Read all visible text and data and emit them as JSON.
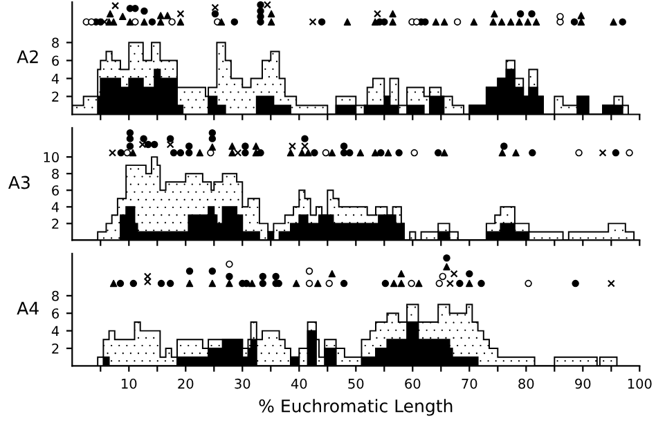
{
  "chart_data": [
    {
      "type": "histogram",
      "ylabel": "A2",
      "xlim": [
        0,
        100
      ],
      "ylim": [
        0,
        12.5
      ],
      "yticks": [
        2,
        4,
        6,
        8
      ],
      "tick_labels": "y",
      "grid": false,
      "xticks": [
        {
          "value": 5,
          "label": null
        },
        {
          "value": 10,
          "label": null
        },
        {
          "value": 15,
          "label": null
        },
        {
          "value": 20,
          "label": null
        },
        {
          "value": 25,
          "label": null
        },
        {
          "value": 30,
          "label": null
        },
        {
          "value": 35,
          "label": null
        },
        {
          "value": 40,
          "label": null
        },
        {
          "value": 45,
          "label": null
        },
        {
          "value": 50,
          "label": null
        },
        {
          "value": 55,
          "label": null
        },
        {
          "value": 60,
          "label": null
        },
        {
          "value": 65,
          "label": null
        },
        {
          "value": 70,
          "label": null
        },
        {
          "value": 75,
          "label": null
        },
        {
          "value": 80,
          "label": null
        },
        {
          "value": 85,
          "label": null
        },
        {
          "value": 90,
          "label": null
        },
        {
          "value": 95,
          "label": null
        },
        {
          "value": 100,
          "label": null
        }
      ],
      "series": [
        {
          "color": "#ffffff",
          "bins": [
            0,
            2,
            4.5,
            5,
            6,
            7,
            8.5,
            10,
            12.5,
            14,
            15.5,
            18.5,
            23.5,
            24,
            25.5,
            27,
            28,
            30,
            31.5,
            33.5,
            35,
            36.5,
            37.5,
            39.5,
            45,
            46.5,
            50,
            52,
            53,
            55,
            56,
            57.5,
            59,
            62,
            63,
            65,
            67,
            69,
            70,
            73,
            75,
            76.5,
            78,
            79.5,
            80.5,
            82,
            83,
            85,
            86.5,
            89,
            91,
            93.5,
            95.5,
            97,
            98
          ],
          "values": [
            1,
            2,
            5,
            6,
            7,
            6,
            5,
            8,
            6,
            8,
            6,
            3,
            2,
            3,
            8,
            6,
            4,
            3,
            4,
            6,
            7,
            4,
            2,
            1,
            0,
            2,
            1,
            3,
            4,
            2,
            4,
            1,
            3,
            2,
            3,
            2,
            1,
            0,
            1,
            3,
            4,
            6,
            4,
            2,
            5,
            2,
            0,
            2,
            1,
            2,
            0,
            1,
            2,
            1
          ]
        },
        {
          "color": "#000000",
          "bins": [
            4.5,
            5,
            8.5,
            10,
            12.5,
            14.5,
            15.5,
            18.5,
            19.5,
            24,
            25.5,
            27,
            32.5,
            35.5,
            38.5,
            46.5,
            50,
            51.5,
            55,
            56,
            57.5,
            59,
            62,
            63,
            65.5,
            70,
            73,
            75,
            76.5,
            78,
            79.5,
            80.5,
            82,
            83,
            89,
            91,
            93.5,
            97
          ],
          "values": [
            2,
            4,
            3,
            4,
            3,
            5,
            4,
            1,
            0,
            2,
            1,
            0,
            2,
            1,
            0,
            1,
            0,
            1,
            2,
            1,
            0,
            1,
            0,
            2,
            0,
            1,
            3,
            4,
            5,
            3,
            2,
            3,
            2,
            0,
            2,
            0,
            1
          ]
        },
        {
          "type": "scatter",
          "marker": "circle",
          "color": "#000000",
          "x": [
            4.2,
            5.0,
            10.2,
            11.1,
            12.7,
            14.1,
            25.2,
            28.6,
            33.2,
            33.2,
            33.2,
            33.2,
            44,
            54.2,
            55,
            61.5,
            62.2,
            79,
            81,
            88.5,
            97
          ],
          "values": [
            10.3,
            10.3,
            11.8,
            11.8,
            11.5,
            10.3,
            11.2,
            10.3,
            10.3,
            10.9,
            11.5,
            12.2,
            10.3,
            10.3,
            10.3,
            10.3,
            10.3,
            11.2,
            11.2,
            10.3,
            10.3
          ]
        },
        {
          "type": "scatter",
          "marker": "circle",
          "color": "#ffffff",
          "x": [
            2.5,
            3.4,
            11.1,
            17.6,
            25.6,
            59.9,
            60.7,
            67.9,
            86,
            86
          ],
          "values": [
            10.3,
            10.3,
            10.3,
            10.3,
            10.3,
            10.3,
            10.3,
            10.3,
            10.3,
            10.9
          ]
        },
        {
          "type": "scatter",
          "marker": "triangle",
          "color": "#000000",
          "x": [
            6.5,
            7.3,
            6.7,
            8.9,
            10.2,
            12.7,
            15.6,
            16.8,
            15.6,
            19.1,
            26.3,
            35.1,
            35.1,
            48.5,
            53.4,
            56.5,
            56.5,
            64.1,
            65.6,
            70.8,
            74.2,
            75.7,
            77.3,
            78.8,
            80.3,
            81.8,
            74.4,
            89.7,
            89.7,
            95.4
          ],
          "values": [
            10.3,
            10.3,
            11.2,
            10.9,
            10.3,
            10.3,
            11.0,
            11.0,
            10.3,
            10.3,
            10.3,
            10.3,
            11.2,
            10.3,
            10.3,
            10.3,
            11.2,
            10.3,
            10.3,
            10.3,
            10.3,
            10.3,
            10.3,
            10.3,
            10.3,
            10.3,
            11.2,
            10.3,
            11.0,
            10.3
          ]
        },
        {
          "type": "scatter",
          "marker": "cross",
          "color": "#000000",
          "x": [
            5.7,
            7.6,
            19.1,
            25.2,
            34.4,
            42.4,
            53.8
          ],
          "values": [
            10.3,
            12.1,
            11.2,
            11.9,
            12.2,
            10.3,
            11.2
          ]
        }
      ]
    },
    {
      "type": "histogram",
      "ylabel": "A3",
      "xlim": [
        0,
        100
      ],
      "ylim": [
        0,
        13.5
      ],
      "yticks": [
        2,
        4,
        6,
        8,
        10
      ],
      "tick_labels": "y",
      "grid": false,
      "xticks": [
        {
          "value": 5,
          "label": null
        },
        {
          "value": 10,
          "label": null
        },
        {
          "value": 15,
          "label": null
        },
        {
          "value": 20,
          "label": null
        },
        {
          "value": 25,
          "label": null
        },
        {
          "value": 30,
          "label": null
        },
        {
          "value": 35,
          "label": null
        },
        {
          "value": 40,
          "label": null
        },
        {
          "value": 45,
          "label": null
        },
        {
          "value": 50,
          "label": null
        },
        {
          "value": 55,
          "label": null
        },
        {
          "value": 60,
          "label": null
        },
        {
          "value": 65,
          "label": null
        },
        {
          "value": 70,
          "label": null
        },
        {
          "value": 75,
          "label": null
        },
        {
          "value": 80,
          "label": null
        },
        {
          "value": 85,
          "label": null
        },
        {
          "value": 90,
          "label": null
        },
        {
          "value": 95,
          "label": null
        },
        {
          "value": 100,
          "label": null
        }
      ],
      "series": [
        {
          "color": "#ffffff",
          "bins": [
            0,
            4.5,
            6,
            7,
            8,
            9.5,
            13,
            14,
            15,
            15.5,
            16.5,
            20,
            23,
            24.5,
            25,
            26.5,
            29,
            30,
            31,
            33,
            34.5,
            35.5,
            37.5,
            39,
            40,
            41,
            42,
            43,
            44,
            45,
            46,
            47,
            52,
            53.5,
            55.5,
            56.5,
            58,
            58.5,
            59.5,
            60.5,
            61.5,
            64.5,
            66.5,
            68,
            73,
            74.5,
            75.5,
            78,
            80.5,
            86.5,
            87.5,
            94.5,
            97.5,
            99
          ],
          "values": [
            0,
            1,
            2,
            3,
            5,
            9,
            8,
            10,
            9,
            6,
            7,
            8,
            7,
            6,
            7,
            8,
            7,
            4,
            5,
            2,
            1,
            2,
            3,
            4,
            6,
            5,
            3,
            4,
            3,
            6,
            5,
            4,
            3,
            4,
            3,
            4,
            2,
            0,
            1,
            0,
            1,
            2,
            1,
            0,
            2,
            3,
            4,
            2,
            1,
            0,
            1,
            2,
            1
          ]
        },
        {
          "color": "#000000",
          "bins": [
            8.5,
            9.5,
            11,
            11.5,
            20.5,
            24,
            25,
            25.5,
            26.5,
            29,
            30,
            33,
            34.5,
            35.5,
            36.5,
            38.5,
            40,
            41.5,
            43.5,
            46,
            54,
            57,
            58.5,
            64.5,
            66.5,
            73,
            75.5,
            78,
            80.5
          ],
          "values": [
            3,
            4,
            2,
            1,
            3,
            4,
            3,
            2,
            4,
            3,
            1,
            0,
            1,
            0,
            1,
            2,
            3,
            2,
            3,
            2,
            3,
            2,
            0,
            1,
            0,
            1,
            2,
            1
          ]
        },
        {
          "type": "scatter",
          "marker": "circle",
          "color": "#000000",
          "x": [
            8.6,
            10.2,
            10.2,
            10.2,
            13.4,
            14.5,
            12.6,
            17.3,
            17.9,
            19.1,
            20.6,
            20.6,
            24.7,
            24.7,
            30.5,
            30.5,
            33.2,
            41,
            42.7,
            47.9,
            47.9,
            48.9,
            54.4,
            57.6,
            64.5,
            76.1,
            81.1,
            95.8
          ],
          "values": [
            10.5,
            11.3,
            12.2,
            12.9,
            11.5,
            11.5,
            12.2,
            12.2,
            10.5,
            10.5,
            10.5,
            11.3,
            12.2,
            12.9,
            10.5,
            11.3,
            10.5,
            12.2,
            10.5,
            10.5,
            11.3,
            10.5,
            10.5,
            10.5,
            10.5,
            11.3,
            10.5,
            10.5
          ]
        },
        {
          "type": "scatter",
          "marker": "circle",
          "color": "#ffffff",
          "x": [
            9.7,
            24.4,
            44.7,
            60.3,
            89.3,
            98.2
          ],
          "values": [
            10.5,
            10.5,
            10.5,
            10.5,
            10.5,
            10.5
          ]
        },
        {
          "type": "scatter",
          "marker": "triangle",
          "color": "#000000",
          "x": [
            10.7,
            22.5,
            24.7,
            28.2,
            28.2,
            32.4,
            32.4,
            38.5,
            40.5,
            41.6,
            45.8,
            50.8,
            53.4,
            55.7,
            65.6,
            75.8,
            78.2
          ],
          "values": [
            10.5,
            10.5,
            11.2,
            10.5,
            11.3,
            10.5,
            11.3,
            10.5,
            10.5,
            10.5,
            10.5,
            10.5,
            10.5,
            10.5,
            10.5,
            10.5,
            10.5
          ]
        },
        {
          "type": "scatter",
          "marker": "cross",
          "color": "#000000",
          "x": [
            7.1,
            12.4,
            17.3,
            29.2,
            38.8,
            41,
            93.5
          ],
          "values": [
            10.5,
            11.5,
            11.5,
            10.5,
            11.3,
            11.3,
            10.5
          ]
        }
      ]
    },
    {
      "type": "histogram",
      "ylabel": "A4",
      "xlabel": "% Euchromatic Length",
      "xlim": [
        0,
        100
      ],
      "ylim": [
        0,
        12.8
      ],
      "yticks": [
        2,
        4,
        6,
        8
      ],
      "grid": false,
      "xticks": [
        {
          "value": 5,
          "label": null
        },
        10,
        {
          "value": 15,
          "label": null
        },
        20,
        {
          "value": 25,
          "label": null
        },
        30,
        {
          "value": 35,
          "label": null
        },
        40,
        {
          "value": 45,
          "label": null
        },
        50,
        {
          "value": 55,
          "label": null
        },
        60,
        {
          "value": 65,
          "label": null
        },
        70,
        {
          "value": 75,
          "label": null
        },
        80,
        {
          "value": 85,
          "label": null
        },
        90,
        {
          "value": 95,
          "label": null
        },
        100
      ],
      "series": [
        {
          "color": "#ffffff",
          "bins": [
            4.5,
            5.5,
            6.5,
            7.5,
            11,
            12,
            15.5,
            16.5,
            17.5,
            18.5,
            23,
            24,
            30,
            31,
            31.5,
            32.5,
            33.5,
            36.5,
            37.5,
            38.5,
            40,
            41.5,
            43,
            43.5,
            44.5,
            46.5,
            48,
            51,
            52.5,
            53.5,
            55.5,
            57.5,
            59,
            61,
            64.5,
            66.5,
            69.5,
            70.5,
            71.5,
            72.5,
            73.5,
            75,
            81.5,
            85,
            92.5,
            93,
            96
          ],
          "values": [
            1,
            3,
            4,
            3,
            5,
            4,
            1,
            2,
            1,
            3,
            2,
            3,
            2,
            3,
            5,
            3,
            4,
            3,
            2,
            1,
            2,
            5,
            3,
            1,
            3,
            2,
            1,
            3,
            4,
            5,
            6,
            5,
            7,
            5,
            7,
            6,
            7,
            5,
            4,
            3,
            2,
            1,
            0,
            1,
            0,
            1
          ]
        },
        {
          "color": "#000000",
          "bins": [
            5.5,
            6.5,
            18.5,
            24,
            26.5,
            30,
            31,
            31.5,
            32.5,
            38.5,
            40,
            41.5,
            43,
            44.5,
            46.5,
            51,
            53.5,
            55.5,
            59,
            61,
            66.5,
            67,
            71.5
          ],
          "values": [
            1,
            0,
            1,
            2,
            3,
            1,
            2,
            3,
            0,
            1,
            0,
            4,
            0,
            2,
            0,
            1,
            2,
            3,
            5,
            3,
            2,
            1
          ]
        },
        {
          "type": "scatter",
          "marker": "circle",
          "color": "#000000",
          "x": [
            8.5,
            10.8,
            15.7,
            17.3,
            20.7,
            24.7,
            27.7,
            30,
            30.7,
            33.6,
            33.6,
            35.9,
            35.9,
            36.4,
            47.9,
            55.2,
            66,
            68.3,
            70,
            72.1,
            88.7
          ],
          "values": [
            9.4,
            9.4,
            9.4,
            9.4,
            10.8,
            10.8,
            10.2,
            9.4,
            9.4,
            9.4,
            10.2,
            9.4,
            10.2,
            9.4,
            9.4,
            9.4,
            12.3,
            9.4,
            10.5,
            9.4,
            9.4
          ]
        },
        {
          "type": "scatter",
          "marker": "circle",
          "color": "#ffffff",
          "x": [
            27.7,
            41.8,
            41.8,
            45.3,
            59.8,
            64.7,
            65.3,
            80.4
          ],
          "values": [
            11.6,
            9.4,
            10.8,
            9.4,
            9.4,
            9.4,
            10.2,
            9.4
          ]
        },
        {
          "type": "scatter",
          "marker": "triangle",
          "color": "#000000",
          "x": [
            7.3,
            20.7,
            24.7,
            27.7,
            31.7,
            39.5,
            43.3,
            45.8,
            56.7,
            58,
            58,
            61.1,
            66,
            70
          ],
          "values": [
            9.4,
            9.4,
            9.4,
            9.4,
            9.4,
            9.4,
            9.4,
            10.5,
            9.4,
            9.4,
            10.5,
            9.4,
            11.3,
            9.4
          ]
        },
        {
          "type": "scatter",
          "marker": "cross",
          "color": "#000000",
          "x": [
            13.3,
            13.3,
            66.6,
            67.3,
            95
          ],
          "values": [
            9.6,
            10.2,
            9.4,
            10.5,
            9.4
          ]
        }
      ]
    }
  ]
}
